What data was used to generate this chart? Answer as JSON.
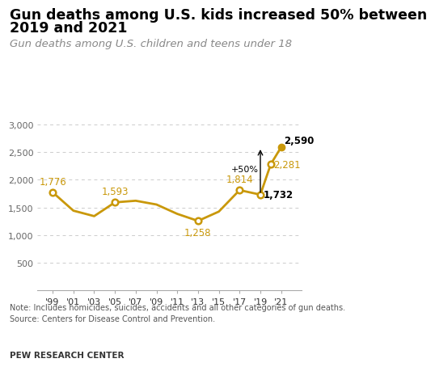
{
  "years": [
    1999,
    2001,
    2003,
    2005,
    2007,
    2009,
    2011,
    2013,
    2015,
    2017,
    2019,
    2020,
    2021
  ],
  "values": [
    1776,
    1443,
    1344,
    1593,
    1622,
    1554,
    1385,
    1258,
    1426,
    1814,
    1732,
    2281,
    2590
  ],
  "line_color": "#C9980A",
  "open_circle_years": [
    1999,
    2005,
    2013,
    2017,
    2019,
    2020
  ],
  "labeled_points": {
    "1999": 1776,
    "2005": 1593,
    "2013": 1258,
    "2017": 1814,
    "2019": 1732,
    "2020": 2281,
    "2021": 2590
  },
  "title_line1": "Gun deaths among U.S. kids increased 50% between",
  "title_line2": "2019 and 2021",
  "subtitle": "Gun deaths among U.S. children and teens under 18",
  "note_line1": "Note: Includes homicides, suicides, accidents and all other categories of gun deaths.",
  "note_line2": "Source: Centers for Disease Control and Prevention.",
  "source_label": "PEW RESEARCH CENTER",
  "ylim": [
    0,
    3300
  ],
  "yticks": [
    500,
    1000,
    1500,
    2000,
    2500,
    3000
  ],
  "ytick_labels": [
    "500",
    "1,000",
    "1,500",
    "2,000",
    "2,500",
    "3,000"
  ],
  "xtick_labels": [
    "'99",
    "'01",
    "'03",
    "'05",
    "'07",
    "'09",
    "'11",
    "'13",
    "'15",
    "'17",
    "'19",
    "'21"
  ],
  "xtick_years": [
    1999,
    2001,
    2003,
    2005,
    2007,
    2009,
    2011,
    2013,
    2015,
    2017,
    2019,
    2021
  ],
  "bg_color": "#ffffff",
  "title_fontsize": 12.5,
  "subtitle_fontsize": 9.5,
  "annotation_50pct": "+50%",
  "line_color_dark": "#C9980A"
}
